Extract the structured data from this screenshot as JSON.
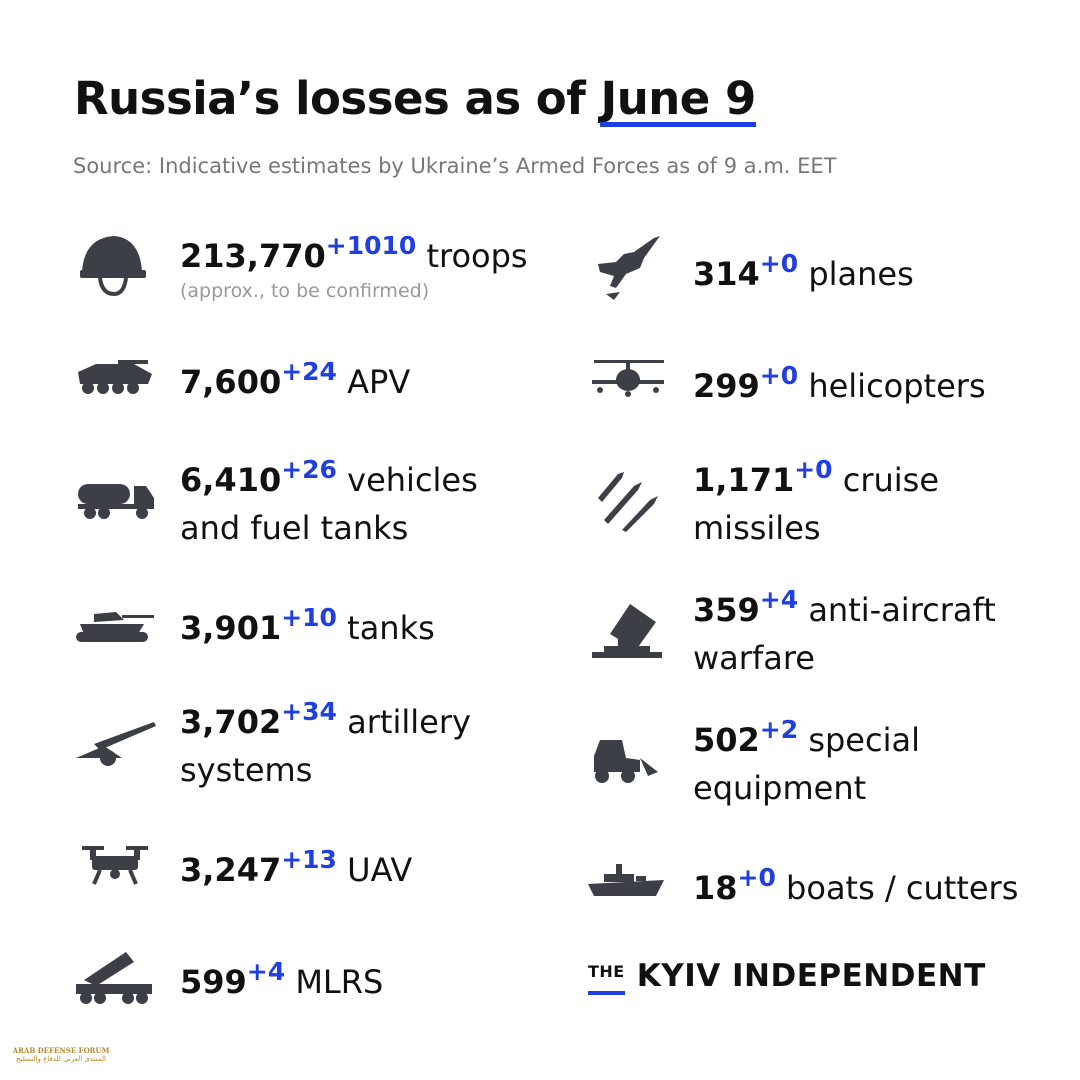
{
  "header": {
    "title": "Russia’s losses as of",
    "date": "June 9",
    "source": "Source: Indicative estimates by Ukraine’s Armed Forces as of 9 a.m. EET"
  },
  "left": [
    {
      "count": "213,770",
      "delta": "+1010",
      "label": "troops",
      "note": "(approx., to be confirmed)"
    },
    {
      "count": "7,600",
      "delta": "+24",
      "label": "APV"
    },
    {
      "count": "6,410",
      "delta": "+26",
      "label": "vehicles and fuel tanks"
    },
    {
      "count": "3,901",
      "delta": "+10",
      "label": "tanks"
    },
    {
      "count": "3,702",
      "delta": "+34",
      "label": "artillery systems"
    },
    {
      "count": "3,247",
      "delta": "+13",
      "label": "UAV"
    },
    {
      "count": "599",
      "delta": "+4",
      "label": "MLRS"
    }
  ],
  "right": [
    {
      "count": "314",
      "delta": "+0",
      "label": "planes"
    },
    {
      "count": "299",
      "delta": "+0",
      "label": "helicopters"
    },
    {
      "count": "1,171",
      "delta": "+0",
      "label": "cruise missiles"
    },
    {
      "count": "359",
      "delta": "+4",
      "label": "anti-aircraft warfare"
    },
    {
      "count": "502",
      "delta": "+2",
      "label": "special equipment"
    },
    {
      "count": "18",
      "delta": "+0",
      "label": "boats / cutters"
    }
  ],
  "logo": {
    "prefix": "THE",
    "name": "KYIV INDEPENDENT"
  },
  "watermark": {
    "name": "ARAB DEFENSE FORUM",
    "arabic": "المنتدى العربي للدفاع والتسليح"
  }
}
